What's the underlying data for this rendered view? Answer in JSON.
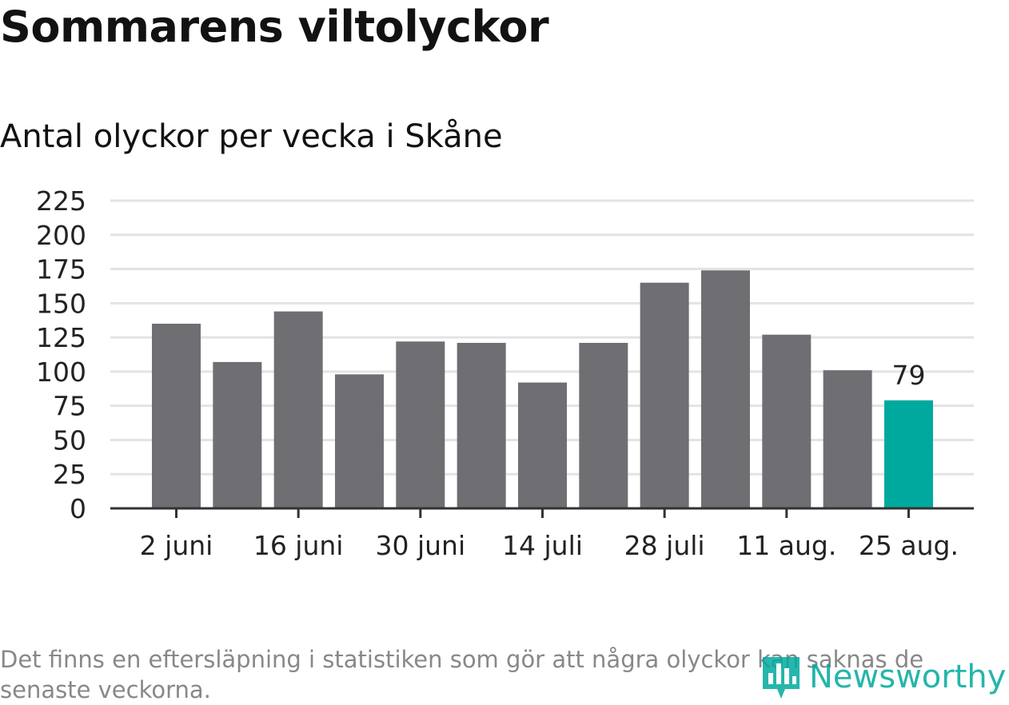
{
  "chart_data": {
    "type": "bar",
    "title": "Sommarens viltolyckor",
    "subtitle": "Antal olyckor per vecka i Skåne",
    "xlabel": "",
    "ylabel": "",
    "ylim": [
      0,
      225
    ],
    "yticks": [
      0,
      25,
      50,
      75,
      100,
      125,
      150,
      175,
      200,
      225
    ],
    "x_tick_labels": [
      "2 juni",
      "16 juni",
      "30 juni",
      "14 juli",
      "28 juli",
      "11 aug.",
      "25 aug."
    ],
    "values": [
      135,
      107,
      144,
      98,
      122,
      121,
      92,
      121,
      165,
      174,
      127,
      101,
      79
    ],
    "highlight": {
      "index": 12,
      "label": "79"
    },
    "grid": true,
    "bar_color": "#6f6e73",
    "highlight_color": "#00A99D"
  },
  "footnote": "Det finns en eftersläpning i statistiken som gör att några olyckor kan saknas de senaste veckorna.",
  "brand": {
    "name": "Newsworthy",
    "icon": "newsworthy-logo-icon",
    "color": "#00A99D"
  }
}
